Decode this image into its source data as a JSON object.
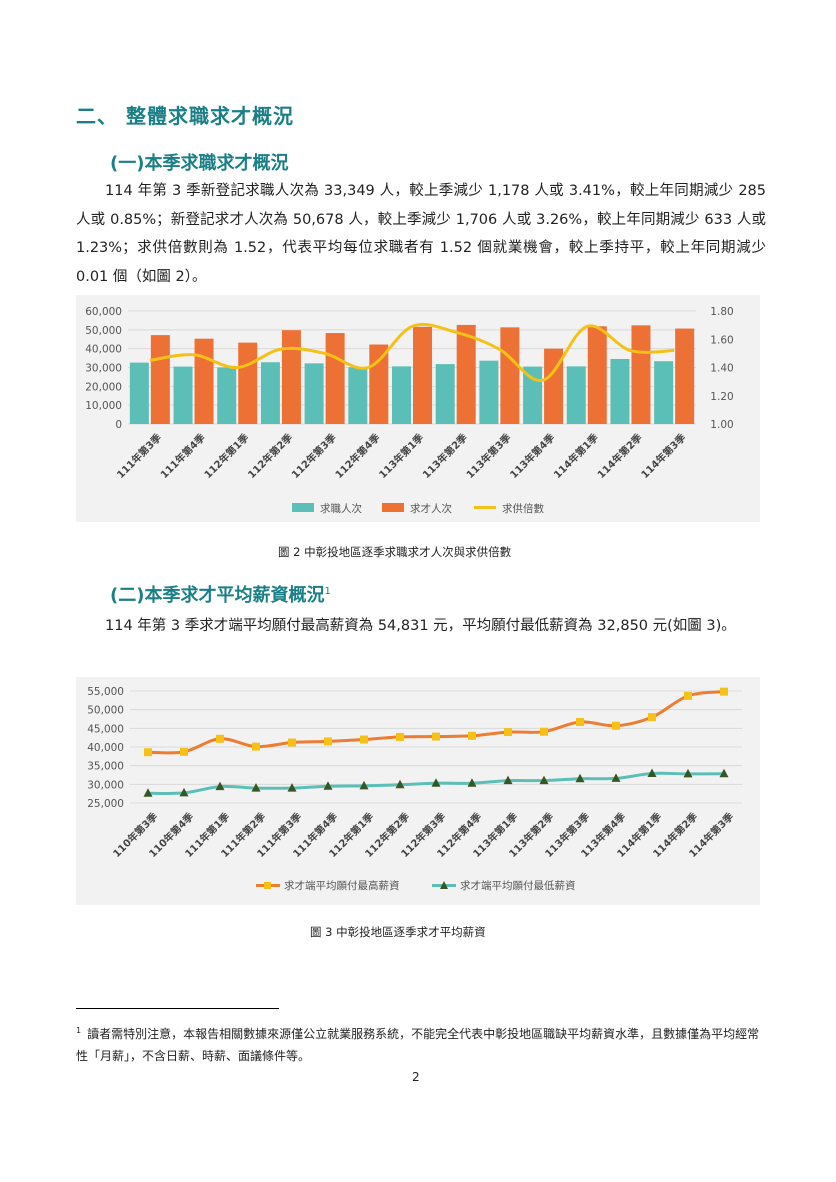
{
  "section": {
    "title": "二、 整體求職求才概況"
  },
  "sub1": {
    "title": "(一)本季求職求才概況",
    "paragraph": "114 年第 3 季新登記求職人次為 33,349 人，較上季減少 1,178 人或 3.41%，較上年同期減少 285 人或 0.85%；新登記求才人次為 50,678 人，較上季減少 1,706 人或 3.26%，較上年同期減少 633 人或 1.23%；求供倍數則為 1.52，代表平均每位求職者有 1.52 個就業機會，較上季持平，較上年同期減少 0.01 個（如圖 2）。"
  },
  "sub2": {
    "title": "(二)本季求才平均薪資概況",
    "footnote_mark": "1",
    "paragraph": "114 年第 3 季求才端平均願付最高薪資為 54,831 元，平均願付最低薪資為 32,850 元(如圖 3)。"
  },
  "figure2": {
    "caption": "圖 2  中彰投地區逐季求職求才人次與求供倍數"
  },
  "figure3": {
    "caption": "圖 3  中彰投地區逐季求才平均薪資"
  },
  "footnote": {
    "mark": "1",
    "text": "讀者需特別注意，本報告相關數據來源僅公立就業服務系統，不能完全代表中彰投地區職缺平均薪資水準，且數據僅為平均經常性「月薪」，不含日薪、時薪、面議條件等。"
  },
  "page_number": "2",
  "colors": {
    "heading": "#1a7f86",
    "seekers": "#5bbfb8",
    "openings": "#ed7034",
    "ratio": "#f5c117",
    "max_salary": "#ed7d31",
    "max_marker": "#f5c117",
    "min_salary": "#5bbfb8",
    "min_marker": "#375623"
  },
  "chart_data": [
    {
      "type": "bar",
      "categories": [
        "111年第3季",
        "111年第4季",
        "112年第1季",
        "112年第2季",
        "112年第3季",
        "112年第4季",
        "113年第1季",
        "113年第2季",
        "113年第3季",
        "113年第4季",
        "114年第1季",
        "114年第2季",
        "114年第3季"
      ],
      "series": [
        {
          "name": "求職人次",
          "type": "bar",
          "axis": "left",
          "values": [
            32600,
            30500,
            30000,
            32800,
            32200,
            30100,
            30600,
            31800,
            33634,
            30500,
            30600,
            34527,
            33349
          ]
        },
        {
          "name": "求才人次",
          "type": "bar",
          "axis": "left",
          "values": [
            47200,
            45300,
            43200,
            49800,
            48300,
            42200,
            51600,
            52600,
            51311,
            40000,
            51900,
            52384,
            50678
          ]
        },
        {
          "name": "求供倍數",
          "type": "line",
          "axis": "right",
          "values": [
            1.45,
            1.49,
            1.4,
            1.53,
            1.5,
            1.4,
            1.69,
            1.65,
            1.53,
            1.31,
            1.69,
            1.52,
            1.52
          ]
        }
      ],
      "yleft_ticks": [
        "60,000",
        "50,000",
        "40,000",
        "30,000",
        "20,000",
        "10,000",
        "0"
      ],
      "yleft_lim": [
        0,
        60000
      ],
      "yright_ticks": [
        "1.80",
        "1.60",
        "1.40",
        "1.20",
        "1.00"
      ],
      "yright_lim": [
        1.0,
        1.8
      ],
      "legend": "bottom"
    },
    {
      "type": "line",
      "categories": [
        "110年第3季",
        "110年第4季",
        "111年第1季",
        "111年第2季",
        "111年第3季",
        "111年第4季",
        "112年第1季",
        "112年第2季",
        "112年第3季",
        "112年第4季",
        "113年第1季",
        "113年第2季",
        "113年第3季",
        "113年第4季",
        "114年第1季",
        "114年第2季",
        "114年第3季"
      ],
      "series": [
        {
          "name": "求才端平均願付最高薪資",
          "values": [
            38600,
            38700,
            42200,
            40100,
            41200,
            41500,
            42000,
            42700,
            42800,
            43000,
            44000,
            44100,
            46700,
            45700,
            48000,
            53700,
            54831
          ]
        },
        {
          "name": "求才端平均願付最低薪資",
          "values": [
            27600,
            27700,
            29400,
            29000,
            29000,
            29500,
            29600,
            29900,
            30300,
            30300,
            31000,
            31000,
            31500,
            31600,
            32900,
            32800,
            32850
          ]
        }
      ],
      "y_ticks": [
        "55,000",
        "50,000",
        "45,000",
        "40,000",
        "35,000",
        "30,000",
        "25,000"
      ],
      "ylim": [
        25000,
        55000
      ],
      "legend": "bottom"
    }
  ]
}
